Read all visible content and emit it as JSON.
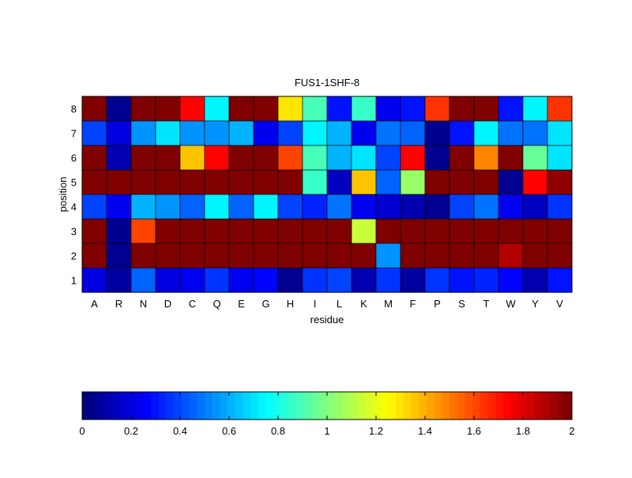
{
  "chart_data": {
    "type": "heatmap",
    "title": "FUS1-1SHF-8",
    "xlabel": "residue",
    "ylabel": "position",
    "x_categories": [
      "A",
      "R",
      "N",
      "D",
      "C",
      "Q",
      "E",
      "G",
      "H",
      "I",
      "L",
      "K",
      "M",
      "F",
      "P",
      "S",
      "T",
      "W",
      "Y",
      "V"
    ],
    "y_categories": [
      "1",
      "2",
      "3",
      "4",
      "5",
      "6",
      "7",
      "8"
    ],
    "colormap": "jet",
    "clim": [
      0,
      2
    ],
    "colorbar": {
      "placement": "bottom",
      "ticks": [
        "0",
        "0.2",
        "0.4",
        "0.6",
        "0.8",
        "1",
        "1.2",
        "1.4",
        "1.6",
        "1.8",
        "2"
      ]
    },
    "values_by_position": {
      "8": [
        2,
        0.05,
        2,
        2,
        1.75,
        0.72,
        2,
        2,
        1.3,
        0.9,
        0.3,
        0.85,
        0.25,
        0.3,
        1.65,
        2,
        2,
        0.3,
        0.75,
        1.65
      ],
      "7": [
        0.4,
        0.2,
        0.55,
        0.7,
        0.55,
        0.55,
        0.62,
        0.25,
        0.4,
        0.75,
        0.62,
        0.22,
        0.5,
        0.45,
        0.05,
        0.3,
        0.72,
        0.5,
        0.5,
        0.7
      ],
      "6": [
        2,
        0.1,
        2,
        2,
        1.35,
        1.75,
        2,
        2,
        1.6,
        0.9,
        0.62,
        0.7,
        0.4,
        1.75,
        0.05,
        2,
        1.5,
        2,
        0.95,
        0.7
      ],
      "5": [
        2,
        2,
        2,
        2,
        2,
        2,
        2,
        2,
        2,
        0.85,
        0.15,
        1.35,
        0.45,
        1.05,
        2,
        2,
        2,
        0.05,
        1.75,
        1.95
      ],
      "4": [
        0.4,
        0.25,
        0.6,
        0.55,
        0.45,
        0.72,
        0.45,
        0.75,
        0.38,
        0.32,
        0.5,
        0.25,
        0.18,
        0.12,
        0.05,
        0.4,
        0.5,
        0.25,
        0.15,
        0.35
      ],
      "3": [
        2,
        0.05,
        1.6,
        2,
        2,
        2,
        2,
        2,
        2,
        2,
        2,
        1.15,
        2,
        2,
        2,
        2,
        2,
        2,
        2,
        2
      ],
      "2": [
        2,
        0.05,
        2,
        2,
        2,
        2,
        2,
        2,
        2,
        2,
        2,
        2,
        0.55,
        2,
        2,
        2,
        2,
        1.9,
        2,
        2
      ],
      "1": [
        0.2,
        0.08,
        0.45,
        0.2,
        0.25,
        0.35,
        0.25,
        0.28,
        0.05,
        0.35,
        0.38,
        0.12,
        0.35,
        0.08,
        0.35,
        0.3,
        0.32,
        0.28,
        0.12,
        0.3
      ]
    }
  }
}
